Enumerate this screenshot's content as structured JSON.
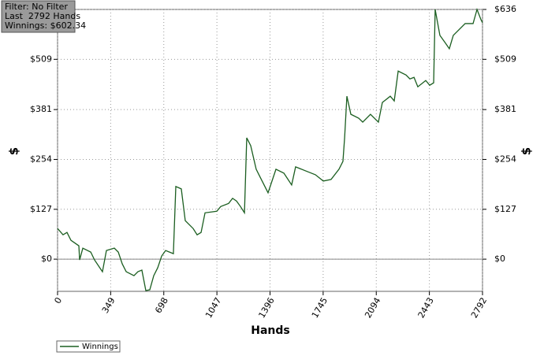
{
  "chart_data": {
    "type": "line",
    "annotations": [
      "Filter: No Filter",
      "Last  2792 Hands",
      "Winnings: $602.34"
    ],
    "x_label": "Hands",
    "y_label": "$",
    "x": [
      0,
      36,
      62,
      88,
      140,
      145,
      166,
      218,
      243,
      295,
      321,
      373,
      399,
      425,
      451,
      502,
      528,
      554,
      580,
      606,
      632,
      658,
      684,
      710,
      761,
      777,
      813,
      839,
      891,
      917,
      943,
      969,
      1046,
      1072,
      1124,
      1150,
      1176,
      1202,
      1228,
      1243,
      1269,
      1305,
      1331,
      1383,
      1409,
      1435,
      1487,
      1538,
      1564,
      1642,
      1694,
      1746,
      1797,
      1849,
      1875,
      1886,
      1901,
      1927,
      1979,
      2005,
      2056,
      2108,
      2134,
      2186,
      2212,
      2238,
      2290,
      2315,
      2342,
      2367,
      2419,
      2445,
      2471,
      2481,
      2512,
      2549,
      2574,
      2600,
      2626,
      2678,
      2730,
      2756,
      2782,
      2792
    ],
    "series": [
      {
        "name": "Winnings",
        "color": "#1b5e20",
        "values": [
          78,
          62,
          68,
          48,
          34,
          -2,
          28,
          18,
          -2,
          -32,
          22,
          28,
          18,
          -12,
          -32,
          -42,
          -32,
          -28,
          -80,
          -78,
          -42,
          -22,
          8,
          22,
          14,
          185,
          179,
          98,
          78,
          62,
          68,
          118,
          122,
          134,
          142,
          155,
          148,
          134,
          118,
          309,
          289,
          229,
          209,
          169,
          199,
          229,
          219,
          189,
          235,
          223,
          215,
          199,
          203,
          229,
          249,
          309,
          415,
          369,
          359,
          349,
          369,
          349,
          399,
          415,
          403,
          479,
          469,
          459,
          463,
          439,
          455,
          443,
          449,
          636,
          570,
          550,
          536,
          570,
          580,
          600,
          600,
          636,
          610,
          602.34
        ]
      }
    ],
    "xlim": [
      0,
      2792
    ],
    "xticks": [
      0,
      349,
      698,
      1047,
      1396,
      1745,
      2094,
      2443,
      2792
    ],
    "ylim": [
      -82,
      636
    ],
    "yticks": [
      {
        "value": 0,
        "label": "$0"
      },
      {
        "value": 127,
        "label": "$127"
      },
      {
        "value": 254,
        "label": "$254"
      },
      {
        "value": 381,
        "label": "$381"
      },
      {
        "value": 509,
        "label": "$509"
      },
      {
        "value": 636,
        "label": "$636"
      }
    ],
    "grid": true
  }
}
